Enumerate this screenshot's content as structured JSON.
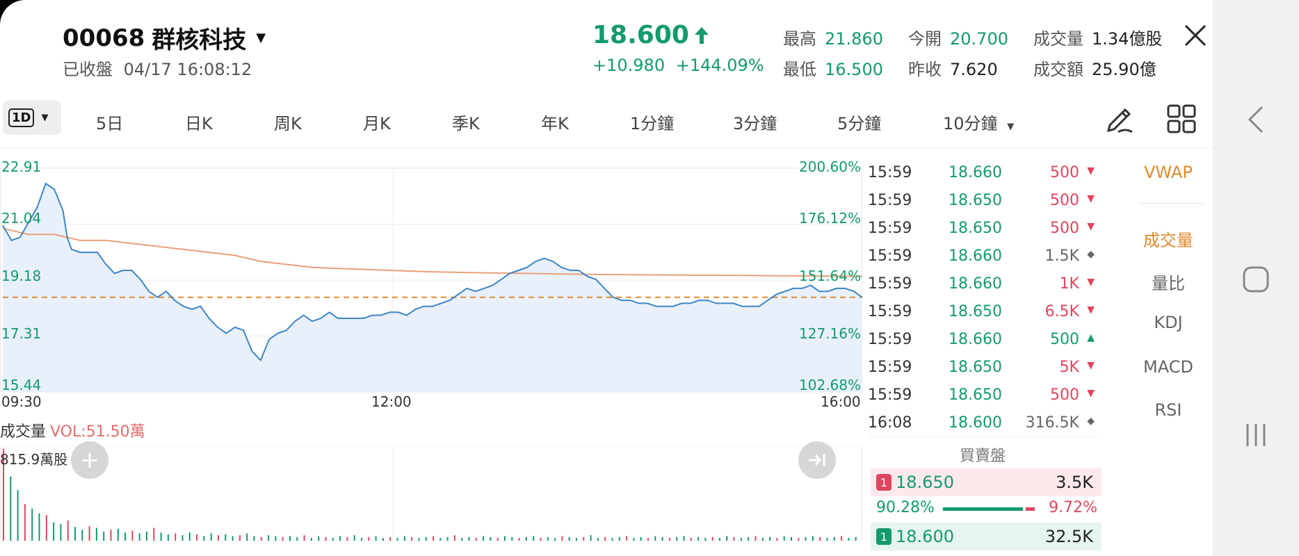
{
  "header": {
    "code": "00068",
    "name": "群核科技",
    "status": "已收盤",
    "datetime": "04/17 16:08:12",
    "price": "18.600",
    "change": "+10.980",
    "change_pct": "+144.09%",
    "stats": [
      {
        "label": "最高",
        "value": "21.860"
      },
      {
        "label": "最低",
        "value": "16.500"
      },
      {
        "label": "今開",
        "value": "20.700"
      },
      {
        "label": "昨收",
        "value": "7.620"
      },
      {
        "label": "成交量",
        "value": "1.34億股"
      },
      {
        "label": "成交額",
        "value": "25.90億"
      }
    ]
  },
  "tabs": {
    "active": "1D",
    "items": [
      "5日",
      "日K",
      "周K",
      "月K",
      "季K",
      "年K",
      "1分鐘",
      "3分鐘",
      "5分鐘",
      "10分鐘"
    ]
  },
  "chart_data": {
    "type": "line",
    "y_left_ticks": [
      "22.91",
      "21.04",
      "19.18",
      "17.31",
      "15.44"
    ],
    "y_right_ticks": [
      "200.60%",
      "176.12%",
      "151.64%",
      "127.16%",
      "102.68%"
    ],
    "x_ticks": [
      "09:30",
      "12:00",
      "16:00"
    ],
    "ylim": [
      15.44,
      22.91
    ],
    "reference_line": 18.6,
    "series": [
      {
        "color": "#3d85c6",
        "x": [
          0,
          0.01,
          0.02,
          0.03,
          0.04,
          0.05,
          0.06,
          0.07,
          0.075,
          0.08,
          0.09,
          0.1,
          0.11,
          0.12,
          0.13,
          0.14,
          0.15,
          0.16,
          0.17,
          0.18,
          0.19,
          0.2,
          0.21,
          0.22,
          0.23,
          0.24,
          0.25,
          0.26,
          0.27,
          0.28,
          0.29,
          0.3,
          0.31,
          0.32,
          0.33,
          0.34,
          0.35,
          0.36,
          0.37,
          0.38,
          0.39,
          0.4,
          0.41,
          0.42,
          0.43,
          0.44,
          0.45,
          0.46,
          0.47,
          0.48,
          0.49,
          0.5,
          0.51,
          0.52,
          0.53,
          0.54,
          0.55,
          0.56,
          0.57,
          0.58,
          0.59,
          0.6,
          0.61,
          0.62,
          0.63,
          0.64,
          0.65,
          0.66,
          0.67,
          0.68,
          0.69,
          0.7,
          0.71,
          0.72,
          0.73,
          0.74,
          0.75,
          0.76,
          0.77,
          0.78,
          0.79,
          0.8,
          0.81,
          0.82,
          0.83,
          0.84,
          0.85,
          0.86,
          0.87,
          0.88,
          0.89,
          0.9,
          0.91,
          0.92,
          0.93,
          0.94,
          0.95,
          0.96,
          0.97,
          0.98,
          0.99,
          1.0
        ],
        "y": [
          21.0,
          20.5,
          20.6,
          21.1,
          21.6,
          22.4,
          22.2,
          21.5,
          20.6,
          20.2,
          20.1,
          20.1,
          20.1,
          19.7,
          19.4,
          19.5,
          19.5,
          19.2,
          18.8,
          18.6,
          18.8,
          18.5,
          18.3,
          18.2,
          18.3,
          17.9,
          17.6,
          17.4,
          17.6,
          17.5,
          16.8,
          16.5,
          17.2,
          17.4,
          17.5,
          17.8,
          18.0,
          17.8,
          17.9,
          18.1,
          17.9,
          17.9,
          17.9,
          17.9,
          18.0,
          18.0,
          18.1,
          18.1,
          18.0,
          18.2,
          18.3,
          18.3,
          18.4,
          18.5,
          18.7,
          18.9,
          18.8,
          18.9,
          19.0,
          19.2,
          19.4,
          19.5,
          19.6,
          19.8,
          19.9,
          19.8,
          19.6,
          19.5,
          19.5,
          19.3,
          19.2,
          18.9,
          18.6,
          18.5,
          18.5,
          18.4,
          18.4,
          18.3,
          18.3,
          18.3,
          18.4,
          18.4,
          18.5,
          18.5,
          18.4,
          18.4,
          18.4,
          18.3,
          18.3,
          18.3,
          18.5,
          18.7,
          18.8,
          18.9,
          18.9,
          19.0,
          18.8,
          18.8,
          18.9,
          18.9,
          18.8,
          18.6
        ]
      },
      {
        "color": "#e8a07a",
        "x": [
          0,
          0.03,
          0.06,
          0.09,
          0.12,
          0.15,
          0.18,
          0.21,
          0.24,
          0.27,
          0.3,
          0.33,
          0.36,
          0.4,
          0.45,
          0.5,
          0.55,
          0.6,
          0.65,
          0.7,
          0.75,
          0.8,
          0.85,
          0.9,
          0.95,
          1.0
        ],
        "y": [
          20.9,
          20.7,
          20.7,
          20.5,
          20.5,
          20.4,
          20.3,
          20.2,
          20.1,
          20.0,
          19.8,
          19.7,
          19.6,
          19.55,
          19.5,
          19.45,
          19.42,
          19.4,
          19.38,
          19.36,
          19.35,
          19.34,
          19.33,
          19.32,
          19.31,
          19.3
        ]
      }
    ],
    "volume": {
      "label": "成交量",
      "vol_text": "VOL:51.50萬",
      "max_text": "815.9萬股",
      "bars": [
        1.0,
        0.7,
        0.55,
        0.4,
        0.35,
        0.3,
        0.28,
        0.2,
        0.18,
        0.22,
        0.15,
        0.12,
        0.16,
        0.14,
        0.1,
        0.12,
        0.13,
        0.09,
        0.11,
        0.08,
        0.1,
        0.14,
        0.09,
        0.07,
        0.08,
        0.06,
        0.09,
        0.07,
        0.05,
        0.08,
        0.06,
        0.07,
        0.05,
        0.06,
        0.08,
        0.05,
        0.04,
        0.06,
        0.05,
        0.04,
        0.05,
        0.04,
        0.06,
        0.03,
        0.05,
        0.04,
        0.03,
        0.05,
        0.04,
        0.06,
        0.03,
        0.04,
        0.05,
        0.03,
        0.04,
        0.03,
        0.05,
        0.04,
        0.03,
        0.04,
        0.05,
        0.03,
        0.04,
        0.06,
        0.03,
        0.04,
        0.03,
        0.05,
        0.04,
        0.03,
        0.05,
        0.04,
        0.03,
        0.04,
        0.05,
        0.03,
        0.04,
        0.03,
        0.05,
        0.04,
        0.03,
        0.04,
        0.06,
        0.03,
        0.04,
        0.03,
        0.04,
        0.05,
        0.03,
        0.04,
        0.03,
        0.05,
        0.04,
        0.03,
        0.04,
        0.05,
        0.03,
        0.04,
        0.03,
        0.04,
        0.03,
        0.05,
        0.04,
        0.03,
        0.04,
        0.05,
        0.03,
        0.04,
        0.03,
        0.05,
        0.04,
        0.03,
        0.04,
        0.05,
        0.04,
        0.03,
        0.04,
        0.05,
        0.03,
        0.04
      ]
    }
  },
  "trades": [
    {
      "time": "15:59",
      "price": "18.660",
      "qty": "500",
      "dir": "down"
    },
    {
      "time": "15:59",
      "price": "18.650",
      "qty": "500",
      "dir": "down"
    },
    {
      "time": "15:59",
      "price": "18.650",
      "qty": "500",
      "dir": "down"
    },
    {
      "time": "15:59",
      "price": "18.660",
      "qty": "1.5K",
      "dir": "neutral"
    },
    {
      "time": "15:59",
      "price": "18.660",
      "qty": "1K",
      "dir": "down"
    },
    {
      "time": "15:59",
      "price": "18.650",
      "qty": "6.5K",
      "dir": "down"
    },
    {
      "time": "15:59",
      "price": "18.660",
      "qty": "500",
      "dir": "up"
    },
    {
      "time": "15:59",
      "price": "18.650",
      "qty": "5K",
      "dir": "down"
    },
    {
      "time": "15:59",
      "price": "18.650",
      "qty": "500",
      "dir": "down"
    },
    {
      "time": "16:08",
      "price": "18.600",
      "qty": "316.5K",
      "dir": "neutral"
    }
  ],
  "order_book": {
    "title": "買賣盤",
    "ask": {
      "level": "1",
      "price": "18.650",
      "qty": "3.5K"
    },
    "bid": {
      "level": "1",
      "price": "18.600",
      "qty": "32.5K"
    },
    "bid_pct": "90.28%",
    "ask_pct": "9.72%",
    "bid_fraction": 0.9028
  },
  "indicators": [
    "VWAP",
    "成交量",
    "量比",
    "KDJ",
    "MACD",
    "RSI"
  ],
  "colors": {
    "up": "#139a6e",
    "down": "#e0455e",
    "accent": "#e08a2e",
    "line": "#3d85c6",
    "vwap": "#e8a07a"
  }
}
